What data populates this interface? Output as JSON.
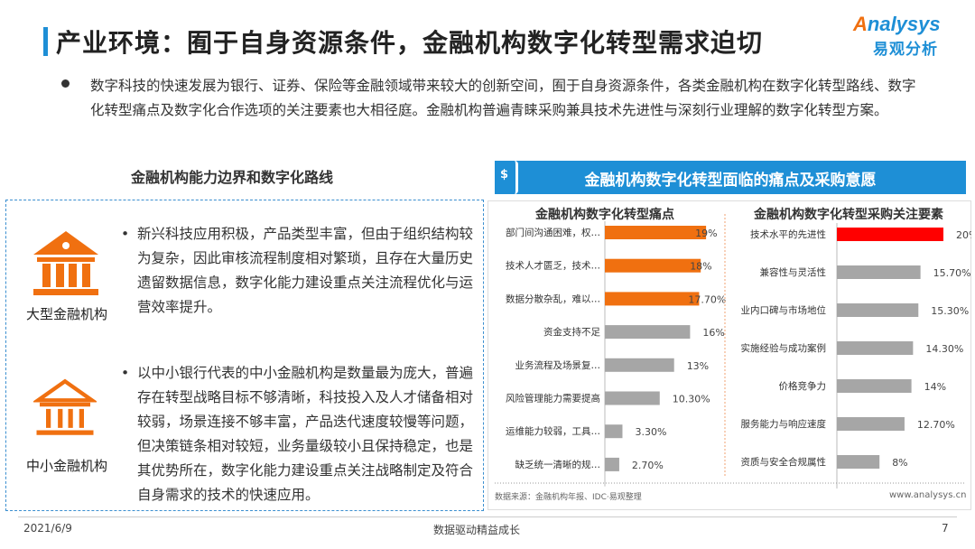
{
  "header": {
    "title": "产业环境：囿于自身资源条件，金融机构数字化转型需求迫切",
    "logo_en": "Analysys",
    "logo_cn": "易观分析"
  },
  "intro": "数字科技的快速发展为银行、证券、保险等金融领域带来较大的创新空间，囿于自身资源条件，各类金融机构在数字化转型路线、数字化转型痛点及数字化合作选项的关注要素也大相径庭。金融机构普遍青睐采购兼具技术先进性与深刻行业理解的数字化转型方案。",
  "left": {
    "heading": "金融机构能力边界和数字化路线",
    "items": [
      {
        "label": "大型金融机构",
        "text": "新兴科技应用积极，产品类型丰富，但由于组织结构较为复杂，因此审核流程制度相对繁琐，且存在大量历史遗留数据信息，数字化能力建设重点关注流程优化与运营效率提升。"
      },
      {
        "label": "中小金融机构",
        "text": "以中小银行代表的中小金融机构是数量最为庞大，普遍存在转型战略目标不够清晰，科技投入及人才储备相对较弱，场景连接不够丰富，产品迭代速度较慢等问题，但决策链条相对较短，业务量级较小且保持稳定，也是其优势所在，数字化能力建设重点关注战略制定及符合自身需求的技术的快速应用。"
      }
    ]
  },
  "right": {
    "heading": "金融机构数字化转型面临的痛点及采购意愿",
    "source": "数据来源：金融机构年报、IDC·易观整理",
    "website": "www.analysys.cn"
  },
  "colors": {
    "accent": "#1e8fd6",
    "orange": "#f07010",
    "red": "#ff0000",
    "gray": "#a6a6a6"
  },
  "chart_data": [
    {
      "type": "bar",
      "orientation": "horizontal",
      "title": "金融机构数字化转型痛点",
      "categories": [
        "部门间沟通困难，权…",
        "技术人才匮乏，技术…",
        "数据分散杂乱，难以…",
        "资金支持不足",
        "业务流程及场景复…",
        "风险管理能力需要提高",
        "运维能力较弱，工具…",
        "缺乏统一清晰的规…"
      ],
      "values": [
        19,
        18,
        17.7,
        16,
        13,
        10.3,
        3.3,
        2.7
      ],
      "labels": [
        "19%",
        "18%",
        "17.70%",
        "16%",
        "13%",
        "10.30%",
        "3.30%",
        "2.70%"
      ],
      "highlight": [
        true,
        true,
        true,
        false,
        false,
        false,
        false,
        false
      ],
      "grid": false
    },
    {
      "type": "bar",
      "orientation": "horizontal",
      "title": "金融机构数字化转型采购关注要素",
      "categories": [
        "技术水平的先进性",
        "兼容性与灵活性",
        "业内口碑与市场地位",
        "实施经验与成功案例",
        "价格竞争力",
        "服务能力与响应速度",
        "资质与安全合规属性"
      ],
      "values": [
        20,
        15.7,
        15.3,
        14.3,
        14,
        12.7,
        8
      ],
      "labels": [
        "20%",
        "15.70%",
        "15.30%",
        "14.30%",
        "14%",
        "12.70%",
        "8%"
      ],
      "highlight": [
        true,
        false,
        false,
        false,
        false,
        false,
        false
      ],
      "grid": false
    }
  ],
  "footer": {
    "date": "2021/6/9",
    "slogan": "数据驱动精益成长",
    "page": "7"
  }
}
